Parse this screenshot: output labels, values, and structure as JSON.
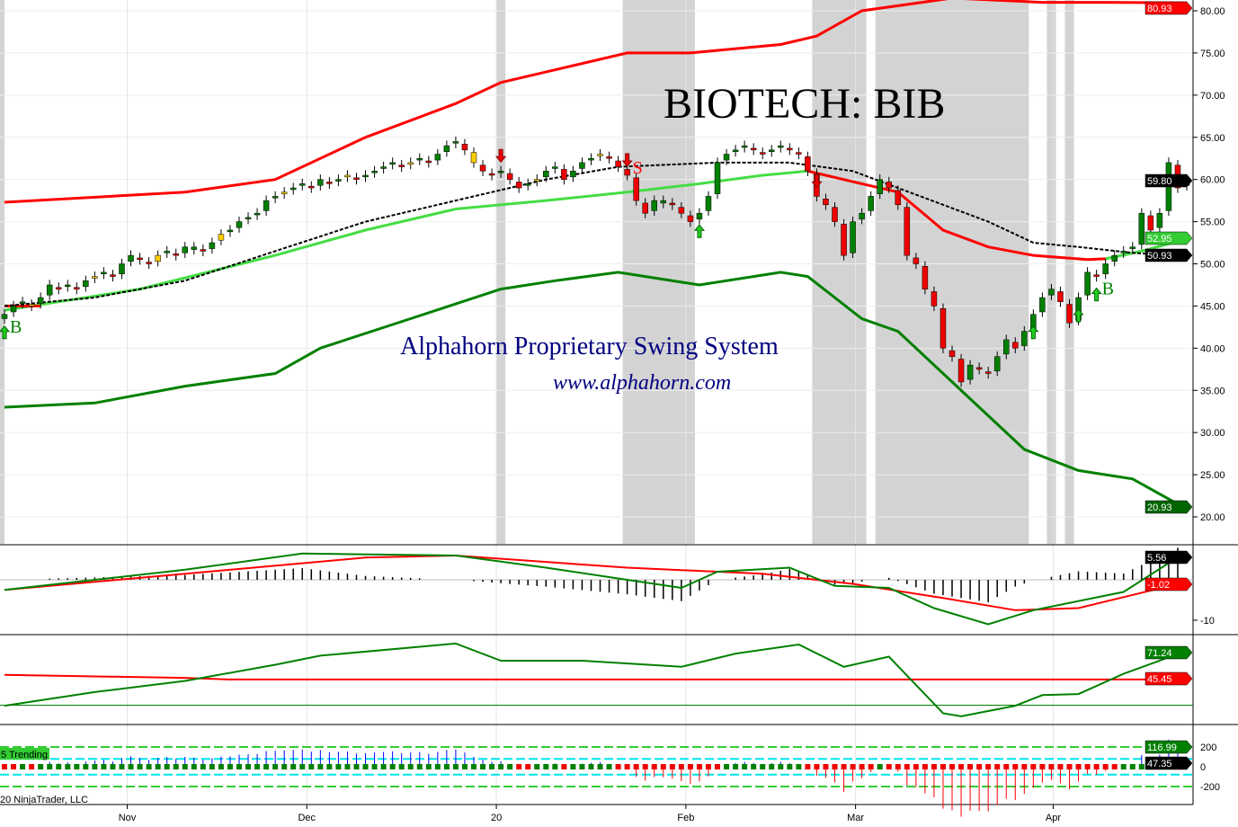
{
  "chart_data": [
    {
      "type": "candlestick",
      "panel": "price",
      "title": "BIOTECH: BIB",
      "annotations": [
        "Alphahorn Proprietary Swing System",
        "www.alphahorn.com"
      ],
      "ylim": [
        20,
        81
      ],
      "yticks": [
        20,
        25,
        30,
        35,
        40,
        45,
        50,
        55,
        60,
        65,
        70,
        75,
        80
      ],
      "xticks": [
        {
          "label": "Nov",
          "bar": 13.6
        },
        {
          "label": "Dec",
          "bar": 33.5
        },
        {
          "label": "20",
          "bar": 54.5
        },
        {
          "label": "Feb",
          "bar": 75.5
        },
        {
          "label": "Mar",
          "bar": 94.3
        },
        {
          "label": "Apr",
          "bar": 116.2
        }
      ],
      "closes": [
        44,
        45,
        45.5,
        45,
        46,
        47.5,
        47,
        47.5,
        47,
        48,
        48.5,
        49,
        48.5,
        50,
        51,
        50.5,
        50,
        51,
        51.5,
        51,
        52,
        52,
        51.5,
        52.5,
        53.5,
        54,
        55,
        55.5,
        56,
        57.5,
        58,
        58.5,
        59,
        59.5,
        59,
        60,
        59.5,
        60,
        60.5,
        60,
        60.5,
        61,
        61.5,
        62,
        61.5,
        62,
        62.5,
        62,
        63,
        64,
        64.5,
        63.5,
        62,
        61,
        60.5,
        61,
        60,
        59,
        59.5,
        60,
        61,
        61.5,
        60,
        61,
        62,
        62.5,
        63,
        62.5,
        61.5,
        60.5,
        57.5,
        56,
        57.5,
        57.5,
        57,
        56,
        55,
        56,
        58,
        62,
        63,
        63.5,
        64,
        63.5,
        63,
        63.5,
        64,
        63.5,
        63,
        61,
        58,
        57,
        55,
        51,
        55,
        56,
        58,
        60,
        59,
        57,
        51,
        50,
        47,
        45,
        40,
        39,
        36,
        38,
        37.5,
        37,
        39,
        41,
        40,
        42,
        44,
        46,
        47,
        45.5,
        43,
        46,
        49,
        48.5,
        50,
        51,
        51.5,
        52,
        56,
        54,
        56,
        62,
        59,
        59.8
      ],
      "upper_band": [
        [
          0,
          57.3
        ],
        [
          20,
          58.5
        ],
        [
          30,
          60
        ],
        [
          40,
          65
        ],
        [
          50,
          69
        ],
        [
          55,
          71.5
        ],
        [
          61,
          73
        ],
        [
          69,
          75
        ],
        [
          76,
          75
        ],
        [
          86,
          76
        ],
        [
          90,
          77
        ],
        [
          95,
          80
        ],
        [
          105,
          81.5
        ],
        [
          115,
          81
        ],
        [
          122,
          81
        ],
        [
          131,
          80.93
        ]
      ],
      "lower_band": [
        [
          0,
          33
        ],
        [
          10,
          33.5
        ],
        [
          20,
          35.5
        ],
        [
          30,
          37
        ],
        [
          35,
          40
        ],
        [
          45,
          43.5
        ],
        [
          55,
          47
        ],
        [
          61,
          48
        ],
        [
          68,
          49
        ],
        [
          77,
          47.5
        ],
        [
          86,
          49
        ],
        [
          89,
          48.5
        ],
        [
          95,
          43.5
        ],
        [
          99,
          42
        ],
        [
          105,
          36
        ],
        [
          113,
          28
        ],
        [
          119,
          25.5
        ],
        [
          125,
          24.5
        ],
        [
          131,
          20.93
        ]
      ],
      "fast_ma": [
        [
          0,
          44.5
        ],
        [
          6,
          45.5
        ],
        [
          15,
          47
        ],
        [
          30,
          51
        ],
        [
          40,
          54
        ],
        [
          50,
          56.5
        ],
        [
          60,
          57.5
        ],
        [
          69,
          58.5
        ],
        [
          77,
          59.5
        ],
        [
          84,
          60.5
        ],
        [
          89,
          61
        ],
        [
          95,
          59.5
        ],
        [
          99,
          58.5
        ],
        [
          104,
          54
        ],
        [
          109,
          52
        ],
        [
          114,
          51
        ],
        [
          120,
          50.5
        ],
        [
          122,
          50.6
        ],
        [
          126,
          51.5
        ],
        [
          131,
          52.95
        ]
      ],
      "slow_ma": [
        [
          0,
          45
        ],
        [
          10,
          46
        ],
        [
          20,
          48
        ],
        [
          30,
          51.5
        ],
        [
          40,
          55
        ],
        [
          50,
          57.5
        ],
        [
          60,
          60
        ],
        [
          68,
          61.5
        ],
        [
          79,
          62
        ],
        [
          87,
          62
        ],
        [
          94,
          61
        ],
        [
          99,
          59
        ],
        [
          104,
          57
        ],
        [
          109,
          55
        ],
        [
          114,
          52.5
        ],
        [
          119,
          52
        ],
        [
          125,
          51.3
        ],
        [
          131,
          50.93
        ]
      ],
      "shaded_bars": [
        [
          55,
          56
        ],
        [
          69,
          77
        ],
        [
          90,
          96
        ],
        [
          97,
          114
        ],
        [
          116,
          117
        ],
        [
          118,
          119
        ]
      ],
      "signals": [
        {
          "bar": 0,
          "type": "buy",
          "label": "B"
        },
        {
          "bar": 55,
          "type": "down"
        },
        {
          "bar": 69,
          "type": "sell",
          "label": "S"
        },
        {
          "bar": 77,
          "type": "up"
        },
        {
          "bar": 90,
          "type": "down"
        },
        {
          "bar": 114,
          "type": "up"
        },
        {
          "bar": 119,
          "type": "up"
        },
        {
          "bar": 121,
          "type": "buy",
          "label": "B"
        }
      ],
      "last_labels": [
        {
          "value": "80.93",
          "color": "#ff0000"
        },
        {
          "value": "59.80",
          "color": "#000000"
        },
        {
          "value": "52.95",
          "color": "#33cc33"
        },
        {
          "value": "50.93",
          "color": "#000000"
        },
        {
          "value": "20.93",
          "color": "#006400"
        }
      ]
    },
    {
      "type": "line",
      "panel": "macd",
      "ylim": [
        -12,
        8
      ],
      "yticks": [
        -10
      ],
      "macd": [
        [
          0,
          -2.5
        ],
        [
          20,
          2.5
        ],
        [
          33,
          6.5
        ],
        [
          50,
          6
        ],
        [
          60,
          3
        ],
        [
          69,
          0
        ],
        [
          75,
          -2
        ],
        [
          79,
          2
        ],
        [
          87,
          3
        ],
        [
          92,
          -1.5
        ],
        [
          98,
          -2
        ],
        [
          103,
          -7
        ],
        [
          109,
          -11
        ],
        [
          114,
          -7.5
        ],
        [
          124,
          -3
        ],
        [
          130,
          5.56
        ]
      ],
      "signal": [
        [
          0,
          -2.5
        ],
        [
          40,
          5.5
        ],
        [
          50,
          6
        ],
        [
          69,
          3
        ],
        [
          84,
          1.5
        ],
        [
          94,
          -1
        ],
        [
          104,
          -4.5
        ],
        [
          112,
          -7.5
        ],
        [
          119,
          -7
        ],
        [
          130,
          -1.02
        ]
      ],
      "last_labels": [
        {
          "value": "5.56",
          "color": "#000000"
        },
        {
          "value": "-1.02",
          "color": "#ff0000"
        }
      ]
    },
    {
      "type": "line",
      "panel": "oscillator",
      "ylim": [
        0,
        100
      ],
      "level": 20,
      "green": [
        [
          0,
          19.5
        ],
        [
          10,
          33
        ],
        [
          20,
          44
        ],
        [
          30,
          60
        ],
        [
          35,
          69
        ],
        [
          50,
          81
        ],
        [
          55,
          64
        ],
        [
          64,
          64
        ],
        [
          75,
          58
        ],
        [
          81,
          71
        ],
        [
          88,
          80
        ],
        [
          93,
          58
        ],
        [
          98,
          68
        ],
        [
          104,
          12
        ],
        [
          106,
          9
        ],
        [
          112,
          19.5
        ],
        [
          115,
          30
        ],
        [
          119,
          31
        ],
        [
          124,
          51
        ],
        [
          128,
          64
        ],
        [
          130,
          71.24
        ]
      ],
      "red": [
        [
          0,
          50
        ],
        [
          20,
          47
        ],
        [
          25,
          45.45
        ],
        [
          130,
          45.45
        ]
      ],
      "last_labels": [
        {
          "value": "71.24",
          "color": "#008000"
        },
        {
          "value": "45.45",
          "color": "#ff0000"
        }
      ]
    },
    {
      "type": "line",
      "panel": "trend",
      "label": "5 Trending",
      "yticks": [
        "200",
        "0",
        "-200"
      ],
      "last_labels": [
        {
          "value": "116.99",
          "color": "#008000"
        },
        {
          "value": "47.35",
          "color": "#000000"
        }
      ]
    }
  ],
  "footer": {
    "copyright": "20 NinjaTrader, LLC"
  }
}
